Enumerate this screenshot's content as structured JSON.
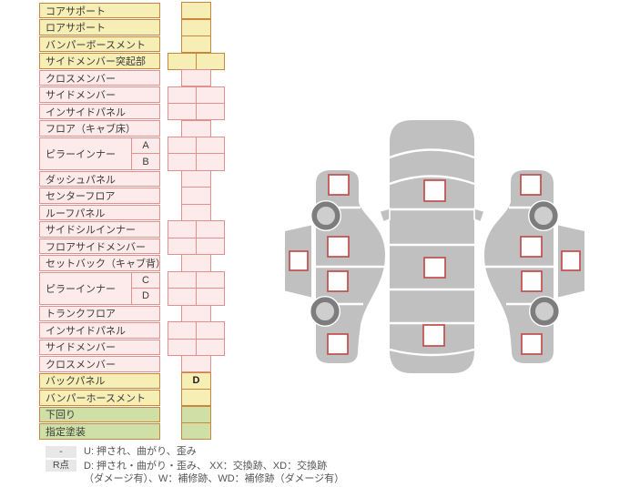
{
  "panel": {
    "rows": [
      {
        "label": "コアサポート",
        "color": "yellow",
        "cells": 1
      },
      {
        "label": "ロアサポート",
        "color": "yellow",
        "cells": 1
      },
      {
        "label": "バンパーボースメント",
        "color": "yellow",
        "cells": 1
      },
      {
        "label": "サイドメンバー突起部",
        "color": "yellow",
        "cells": 2
      },
      {
        "label": "クロスメンバー",
        "color": "pink",
        "cells": 1
      },
      {
        "label": "サイドメンバー",
        "color": "pink",
        "cells": 2
      },
      {
        "label": "インサイドパネル",
        "color": "pink",
        "cells": 2
      },
      {
        "label": "フロア（キャブ床）",
        "color": "pink",
        "cells": 1
      },
      {
        "label": "ピラーインナー",
        "color": "pink",
        "cells": 2,
        "sub": [
          "A",
          "B"
        ]
      },
      {
        "label": "ダッシュパネル",
        "color": "pink",
        "cells": 1
      },
      {
        "label": "センターフロア",
        "color": "pink",
        "cells": 1
      },
      {
        "label": "ルーフパネル",
        "color": "pink",
        "cells": 1
      },
      {
        "label": "サイドシルインナー",
        "color": "pink",
        "cells": 2
      },
      {
        "label": "フロアサイドメンバー",
        "color": "pink",
        "cells": 2
      },
      {
        "label": "セットバック（キャブ背）",
        "color": "pink",
        "cells": 1
      },
      {
        "label": "ピラーインナー",
        "color": "pink",
        "cells": 2,
        "sub": [
          "C",
          "D"
        ]
      },
      {
        "label": "トランクフロア",
        "color": "pink",
        "cells": 1
      },
      {
        "label": "インサイドパネル",
        "color": "pink",
        "cells": 2
      },
      {
        "label": "サイドメンバー",
        "color": "pink",
        "cells": 2
      },
      {
        "label": "クロスメンバー",
        "color": "pink",
        "cells": 1
      },
      {
        "label": "バックパネル",
        "color": "yellow",
        "cells": 1,
        "mark": "D"
      },
      {
        "label": "バンパーホースメント",
        "color": "yellow",
        "cells": 1
      },
      {
        "label": "下回り",
        "color": "green",
        "cells": 1
      },
      {
        "label": "指定塗装",
        "color": "green",
        "cells": 1
      }
    ]
  },
  "diagram": {
    "views": [
      "left-side",
      "top",
      "right-side"
    ],
    "points": [
      {
        "id": "left-front-fender",
        "mark": ""
      },
      {
        "id": "left-front-door",
        "mark": ""
      },
      {
        "id": "left-roof",
        "mark": ""
      },
      {
        "id": "left-rear-door",
        "mark": ""
      },
      {
        "id": "left-rear-fender",
        "mark": ""
      },
      {
        "id": "top-hood",
        "mark": ""
      },
      {
        "id": "top-roof",
        "mark": ""
      },
      {
        "id": "top-trunk",
        "mark": ""
      },
      {
        "id": "right-front-fender",
        "mark": ""
      },
      {
        "id": "right-front-door",
        "mark": ""
      },
      {
        "id": "right-roof",
        "mark": ""
      },
      {
        "id": "right-rear-door",
        "mark": ""
      },
      {
        "id": "right-rear-fender",
        "mark": ""
      }
    ]
  },
  "legend": {
    "row1": {
      "badge": "-",
      "text": "U: 押され、曲がり、歪み"
    },
    "row2": {
      "badge": "R点",
      "line1": "D: 押され・曲がり・歪み、 XX：交換跡、XD：交換跡",
      "line2": "（ダメージ有）、W：補修跡、WD：補修跡（ダメージ有）"
    }
  },
  "colors": {
    "yellow_fill": "#f6eeb4",
    "pink_fill": "#fdeaea",
    "green_fill": "#cfdfa5",
    "orange_border": "#c7873f",
    "pink_border": "#e2908d",
    "checkpoint_red": "#c0504d",
    "car_gray": "#c1c0c0",
    "wheel_ring": "#7d7d7d",
    "wheel_hub": "#cecece",
    "badge_gray": "#e8e8e8"
  }
}
